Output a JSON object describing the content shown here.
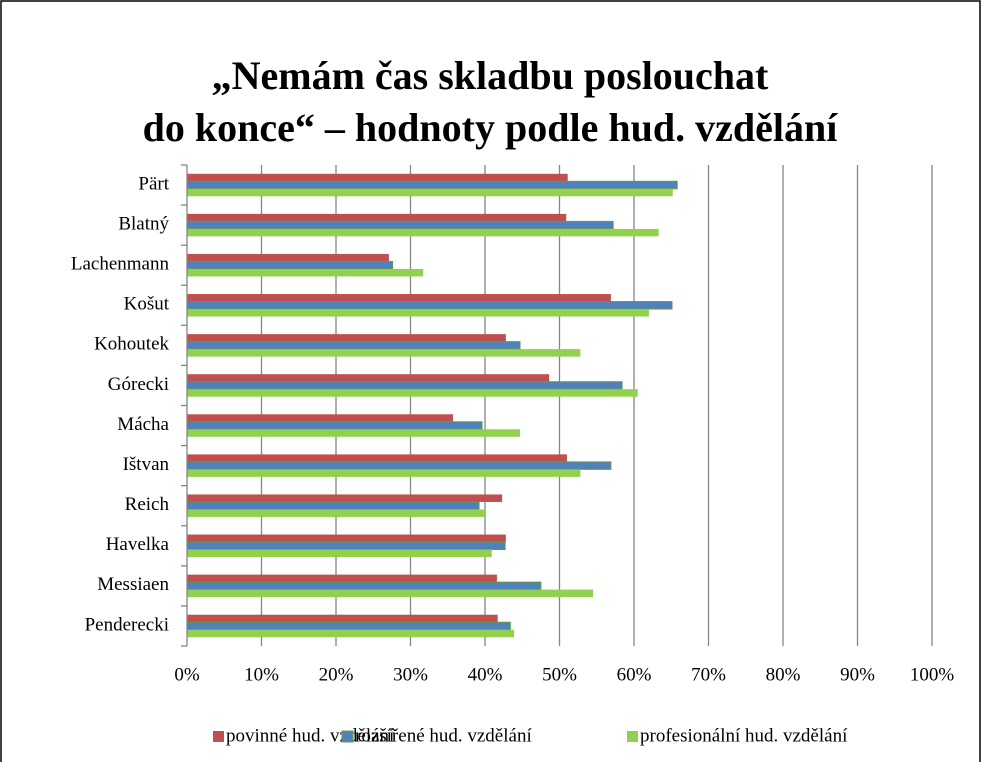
{
  "chart_data": {
    "type": "barh",
    "title": [
      "„Nemám čas skladbu poslouchat",
      "do konce“ – hodnoty podle hud. vzdělání"
    ],
    "categories": [
      "Pärt",
      "Blatný",
      "Lachenmann",
      "Košut",
      "Kohoutek",
      "Górecki",
      "Mácha",
      "Ištvan",
      "Reich",
      "Havelka",
      "Messiaen",
      "Penderecki"
    ],
    "series": [
      {
        "name": "povinné hud. vzdělání",
        "color": "#c0504d",
        "values": [
          51.1,
          50.9,
          27.1,
          56.9,
          42.8,
          48.6,
          35.7,
          51.0,
          42.3,
          42.8,
          41.6,
          41.7
        ]
      },
      {
        "name": "rozšířené hud. vzdělání",
        "color": "#4f81bd",
        "values": [
          65.8,
          57.2,
          27.6,
          65.1,
          44.7,
          58.4,
          39.6,
          56.9,
          39.2,
          42.7,
          47.5,
          43.4
        ]
      },
      {
        "name": "profesionální hud. vzdělání",
        "color": "#92d050",
        "values": [
          65.2,
          63.3,
          31.7,
          62.0,
          52.8,
          60.5,
          44.7,
          52.8,
          40.0,
          40.9,
          54.5,
          43.9
        ]
      }
    ],
    "xlim": [
      0,
      100
    ],
    "xticks": [
      {
        "value": 0,
        "label": "0%"
      },
      {
        "value": 10,
        "label": "10%"
      },
      {
        "value": 20,
        "label": "20%"
      },
      {
        "value": 30,
        "label": "30%"
      },
      {
        "value": 40,
        "label": "40%"
      },
      {
        "value": 50,
        "label": "50%"
      },
      {
        "value": 60,
        "label": "60%"
      },
      {
        "value": 70,
        "label": "70%"
      },
      {
        "value": 80,
        "label": "80%"
      },
      {
        "value": 90,
        "label": "90%"
      },
      {
        "value": 100,
        "label": "100%"
      }
    ],
    "grid": true,
    "legend": "bottom"
  }
}
